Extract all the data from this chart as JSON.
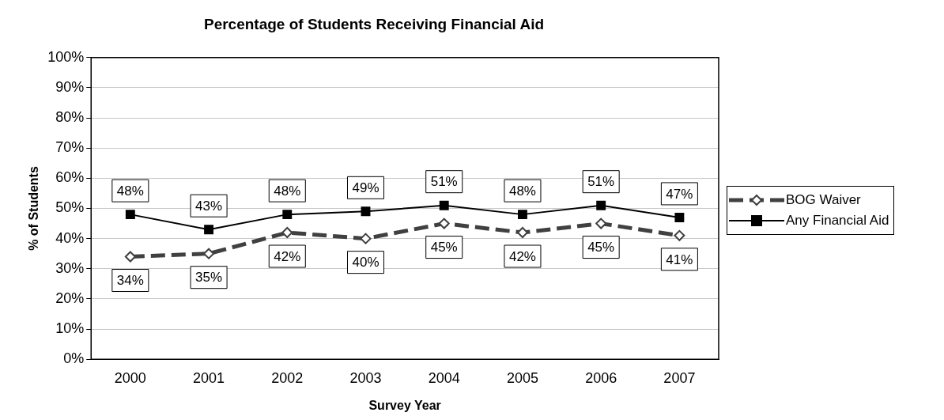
{
  "chart_data": {
    "type": "line",
    "title": "Percentage of Students Receiving Financial Aid",
    "xlabel": "Survey Year",
    "ylabel": "% of Students",
    "categories": [
      "2000",
      "2001",
      "2002",
      "2003",
      "2004",
      "2005",
      "2006",
      "2007"
    ],
    "series": [
      {
        "name": "BOG Waiver",
        "color": "#404040",
        "marker": "diamond",
        "line_style": "dashed",
        "values": [
          34,
          35,
          42,
          40,
          45,
          42,
          45,
          41
        ],
        "value_labels": [
          "34%",
          "35%",
          "42%",
          "40%",
          "45%",
          "42%",
          "45%",
          "41%"
        ]
      },
      {
        "name": "Any Financial Aid",
        "color": "#000000",
        "marker": "square",
        "line_style": "solid",
        "values": [
          48,
          43,
          48,
          49,
          51,
          48,
          51,
          47
        ],
        "value_labels": [
          "48%",
          "43%",
          "48%",
          "49%",
          "51%",
          "48%",
          "51%",
          "47%"
        ]
      }
    ],
    "ylim": [
      0,
      100
    ],
    "yticks": [
      {
        "value": 0,
        "label": "0%"
      },
      {
        "value": 10,
        "label": "10%"
      },
      {
        "value": 20,
        "label": "20%"
      },
      {
        "value": 30,
        "label": "30%"
      },
      {
        "value": 40,
        "label": "40%"
      },
      {
        "value": 50,
        "label": "50%"
      },
      {
        "value": 60,
        "label": "60%"
      },
      {
        "value": 70,
        "label": "70%"
      },
      {
        "value": 80,
        "label": "80%"
      },
      {
        "value": 90,
        "label": "90%"
      },
      {
        "value": 100,
        "label": "100%"
      }
    ],
    "grid": "y",
    "legend": "right"
  }
}
